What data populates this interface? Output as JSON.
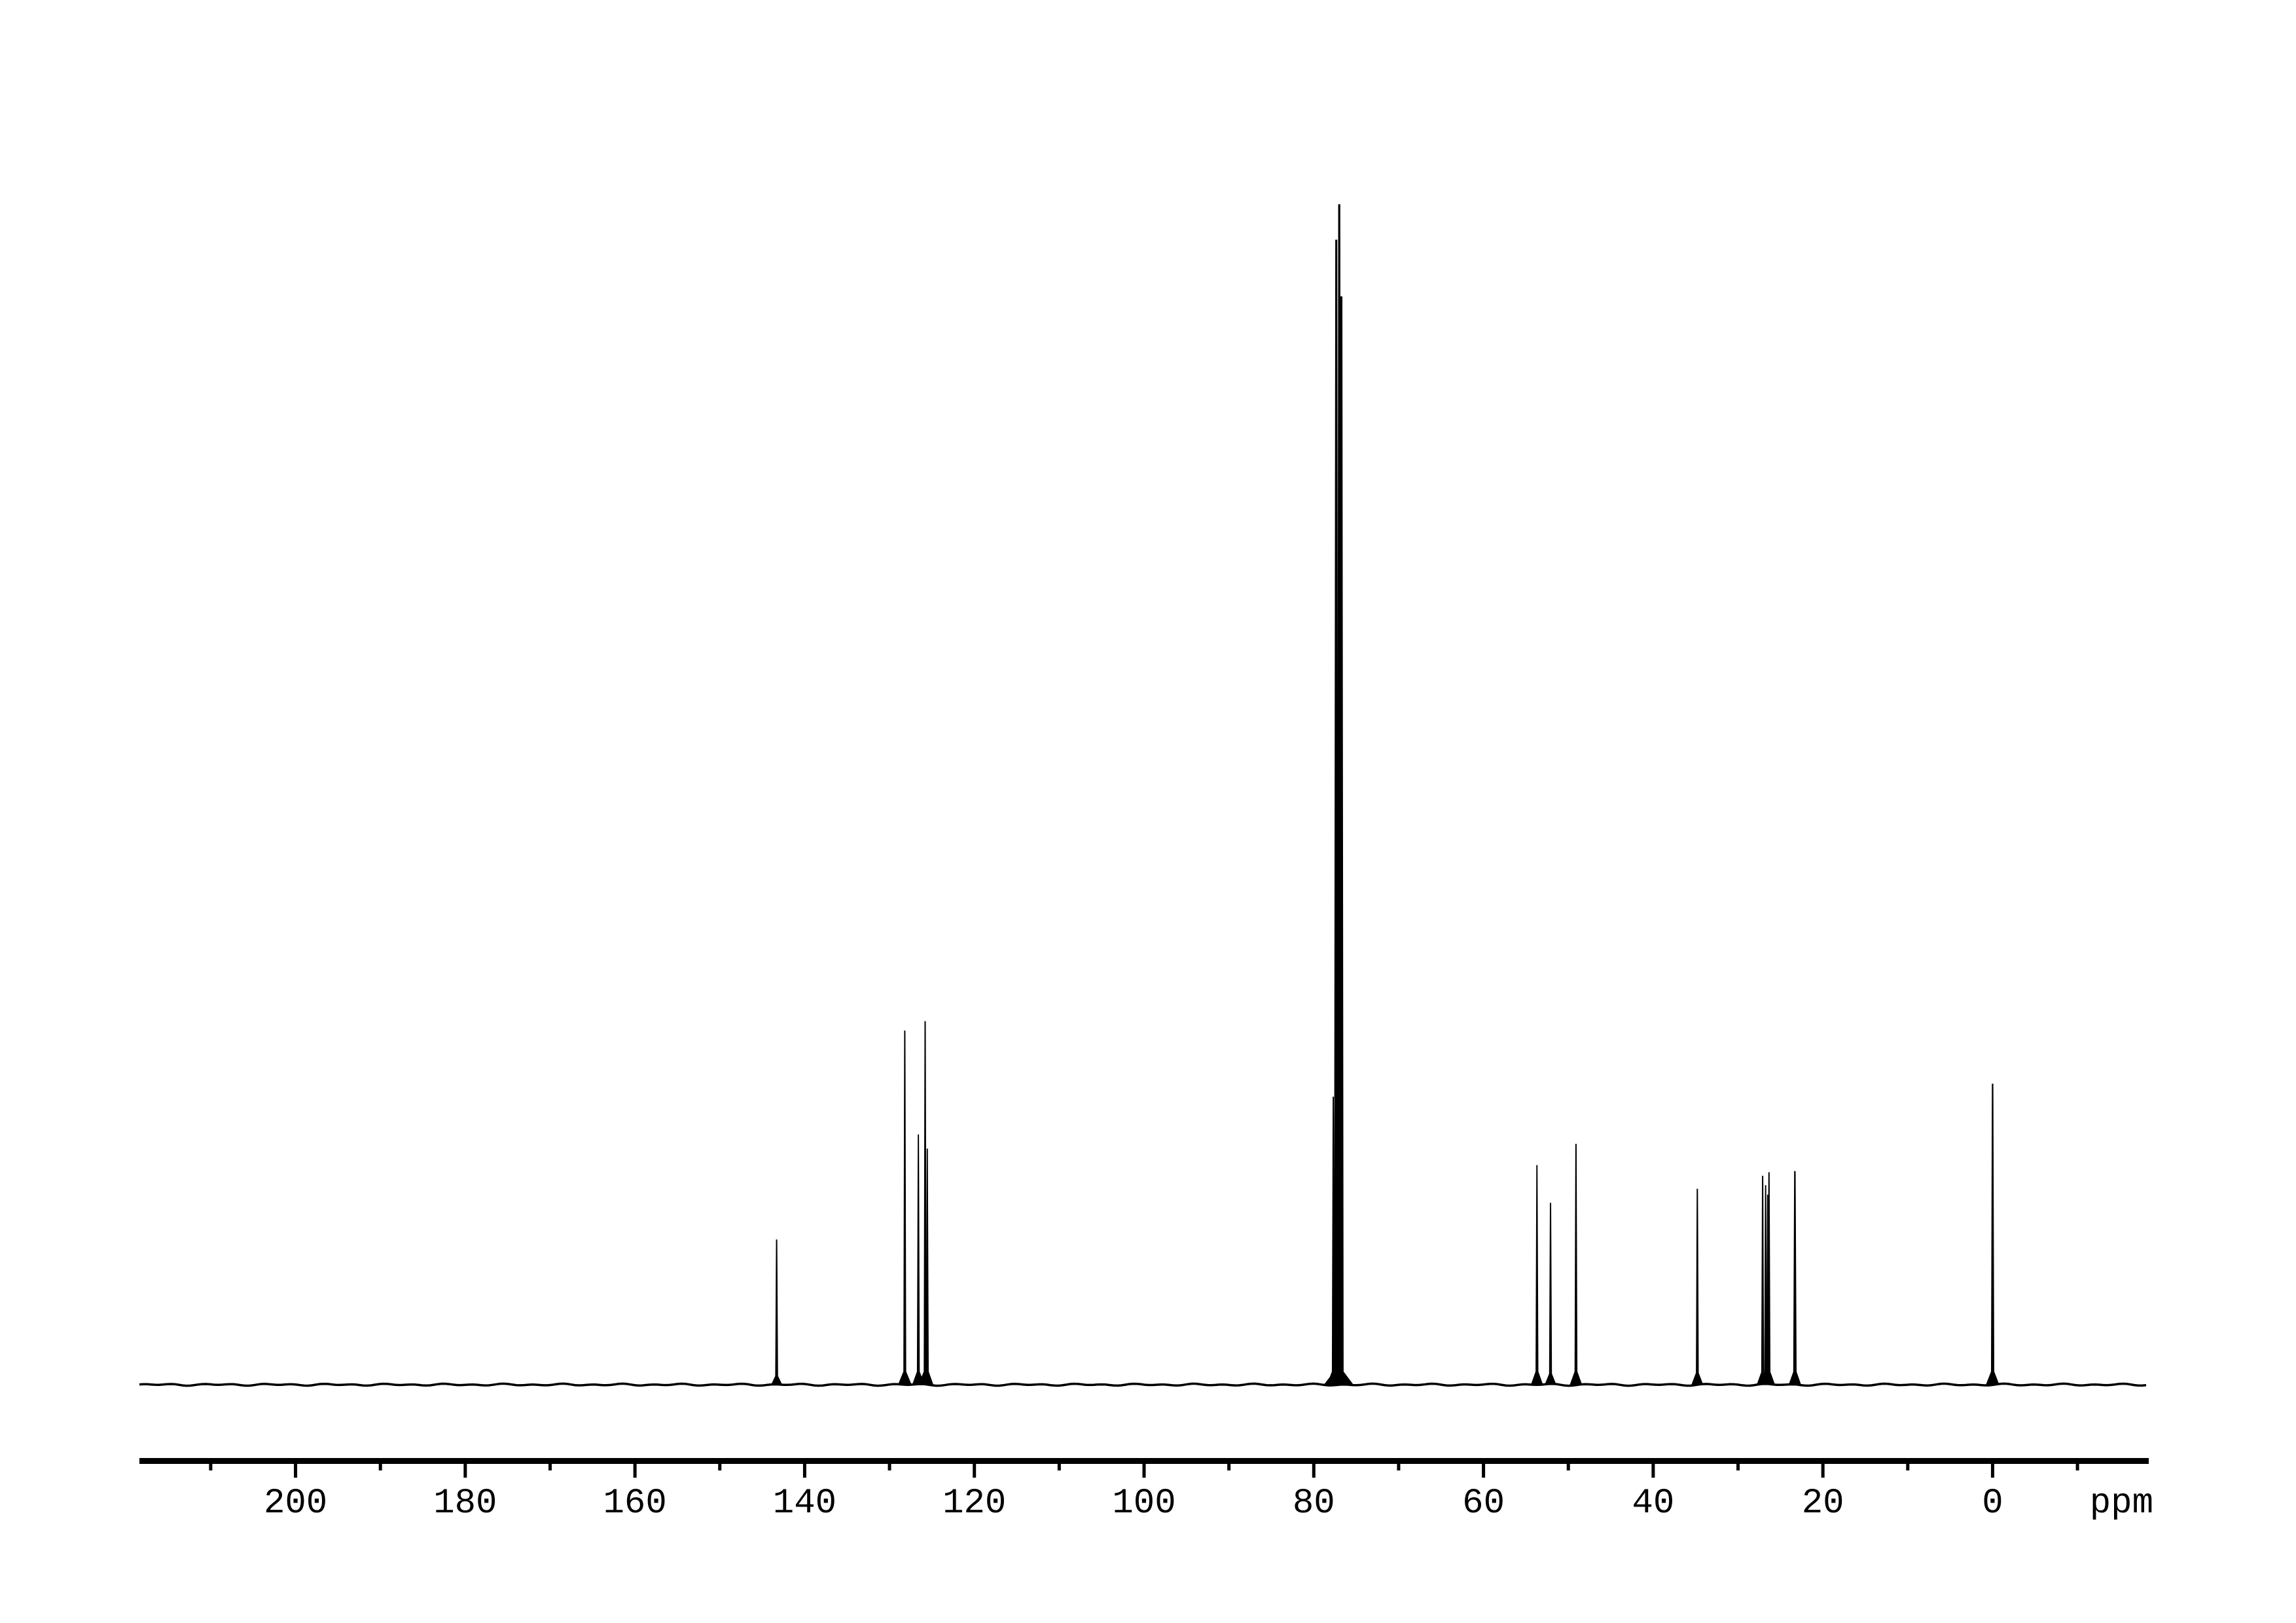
{
  "page": {
    "background_color": "#ffffff",
    "foreground_color": "#000000"
  },
  "chart_data": {
    "type": "line",
    "subtype": "nmr-spectrum",
    "title": "",
    "xlabel": "ppm",
    "ylabel": "",
    "legend": "none",
    "grid": false,
    "x_axis": {
      "unit_label": "ppm",
      "range": [
        218.4,
        -18.4
      ],
      "direction": "decreasing-to-right",
      "major_ticks": [
        200,
        180,
        160,
        140,
        120,
        100,
        80,
        60,
        40,
        20,
        0
      ],
      "major_tick_labels": [
        "200",
        "180",
        "160",
        "140",
        "120",
        "100",
        "80",
        "60",
        "40",
        "20",
        "0"
      ],
      "minor_ticks": [
        210,
        190,
        170,
        150,
        130,
        110,
        90,
        70,
        50,
        30,
        10,
        -10
      ]
    },
    "y_axis": {
      "visible": false,
      "range": [
        0,
        1.08
      ]
    },
    "peaks": [
      {
        "ppm": 143.3,
        "intensity": 0.123,
        "w": 2.2
      },
      {
        "ppm": 128.2,
        "intensity": 0.3,
        "w": 2.2
      },
      {
        "ppm": 126.6,
        "intensity": 0.212,
        "w": 2.2
      },
      {
        "ppm": 125.8,
        "intensity": 0.308,
        "w": 2.2
      },
      {
        "ppm": 125.55,
        "intensity": 0.2,
        "w": 2.2
      },
      {
        "ppm": 77.7,
        "intensity": 0.244,
        "w": 2.2
      },
      {
        "ppm": 77.35,
        "intensity": 0.97,
        "w": 3.5
      },
      {
        "ppm": 77.0,
        "intensity": 1.0,
        "w": 3.5
      },
      {
        "ppm": 76.75,
        "intensity": 0.922,
        "w": 3.5
      },
      {
        "ppm": 53.7,
        "intensity": 0.186,
        "w": 2.2
      },
      {
        "ppm": 52.1,
        "intensity": 0.154,
        "w": 2.2
      },
      {
        "ppm": 49.1,
        "intensity": 0.204,
        "w": 2.2
      },
      {
        "ppm": 34.8,
        "intensity": 0.166,
        "w": 2.2
      },
      {
        "ppm": 27.1,
        "intensity": 0.177,
        "w": 2.2
      },
      {
        "ppm": 26.75,
        "intensity": 0.169,
        "w": 2.2
      },
      {
        "ppm": 26.5,
        "intensity": 0.161,
        "w": 2.2
      },
      {
        "ppm": 26.35,
        "intensity": 0.18,
        "w": 2.2
      },
      {
        "ppm": 23.3,
        "intensity": 0.181,
        "w": 2.6
      },
      {
        "ppm": 0.0,
        "intensity": 0.255,
        "w": 2.5
      }
    ]
  }
}
